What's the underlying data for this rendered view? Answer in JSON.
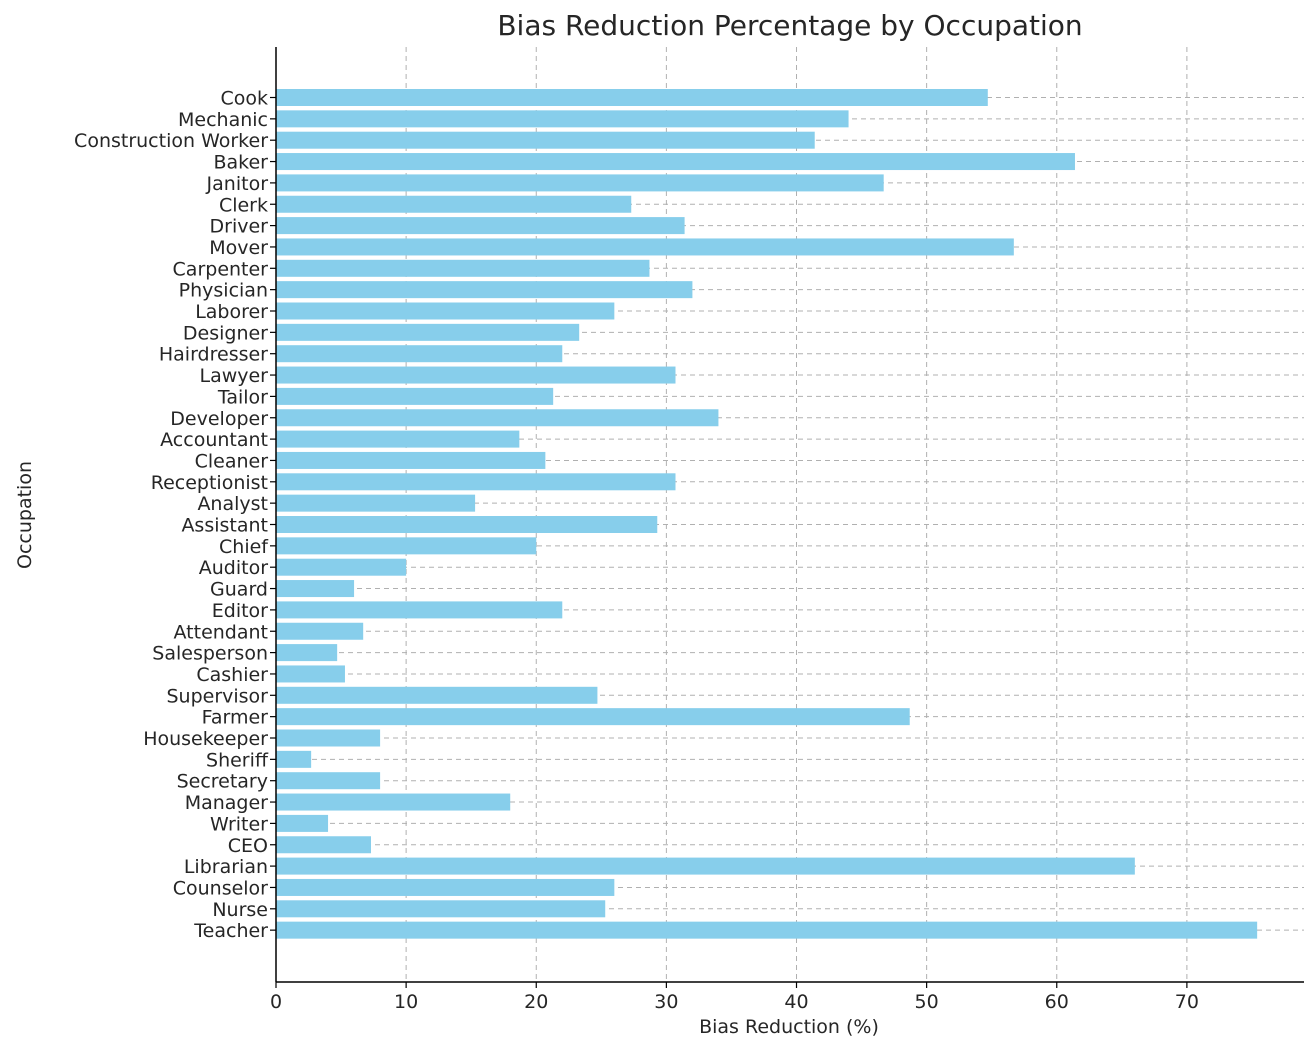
{
  "chart_data": {
    "type": "bar",
    "orientation": "horizontal",
    "title": "Bias Reduction Percentage by Occupation",
    "xlabel": "Bias Reduction (%)",
    "ylabel": "Occupation",
    "xlim": [
      0,
      79
    ],
    "xticks": [
      0,
      10,
      20,
      30,
      40,
      50,
      60,
      70
    ],
    "grid": true,
    "bar_color": "#87ceeb",
    "categories": [
      "Cook",
      "Mechanic",
      "Construction Worker",
      "Baker",
      "Janitor",
      "Clerk",
      "Driver",
      "Mover",
      "Carpenter",
      "Physician",
      "Laborer",
      "Designer",
      "Hairdresser",
      "Lawyer",
      "Tailor",
      "Developer",
      "Accountant",
      "Cleaner",
      "Receptionist",
      "Analyst",
      "Assistant",
      "Chief",
      "Auditor",
      "Guard",
      "Editor",
      "Attendant",
      "Salesperson",
      "Cashier",
      "Supervisor",
      "Farmer",
      "Housekeeper",
      "Sheriff",
      "Secretary",
      "Manager",
      "Writer",
      "CEO",
      "Librarian",
      "Counselor",
      "Nurse",
      "Teacher"
    ],
    "values": [
      54.7,
      44.0,
      41.4,
      61.4,
      46.7,
      27.3,
      31.4,
      56.7,
      28.7,
      32.0,
      26.0,
      23.3,
      22.0,
      30.7,
      21.3,
      34.0,
      18.7,
      20.7,
      30.7,
      15.3,
      29.3,
      20.0,
      10.0,
      6.0,
      22.0,
      6.7,
      4.7,
      5.3,
      24.7,
      48.7,
      8.0,
      2.7,
      8.0,
      18.0,
      4.0,
      7.3,
      66.0,
      26.0,
      25.3,
      75.4
    ]
  }
}
